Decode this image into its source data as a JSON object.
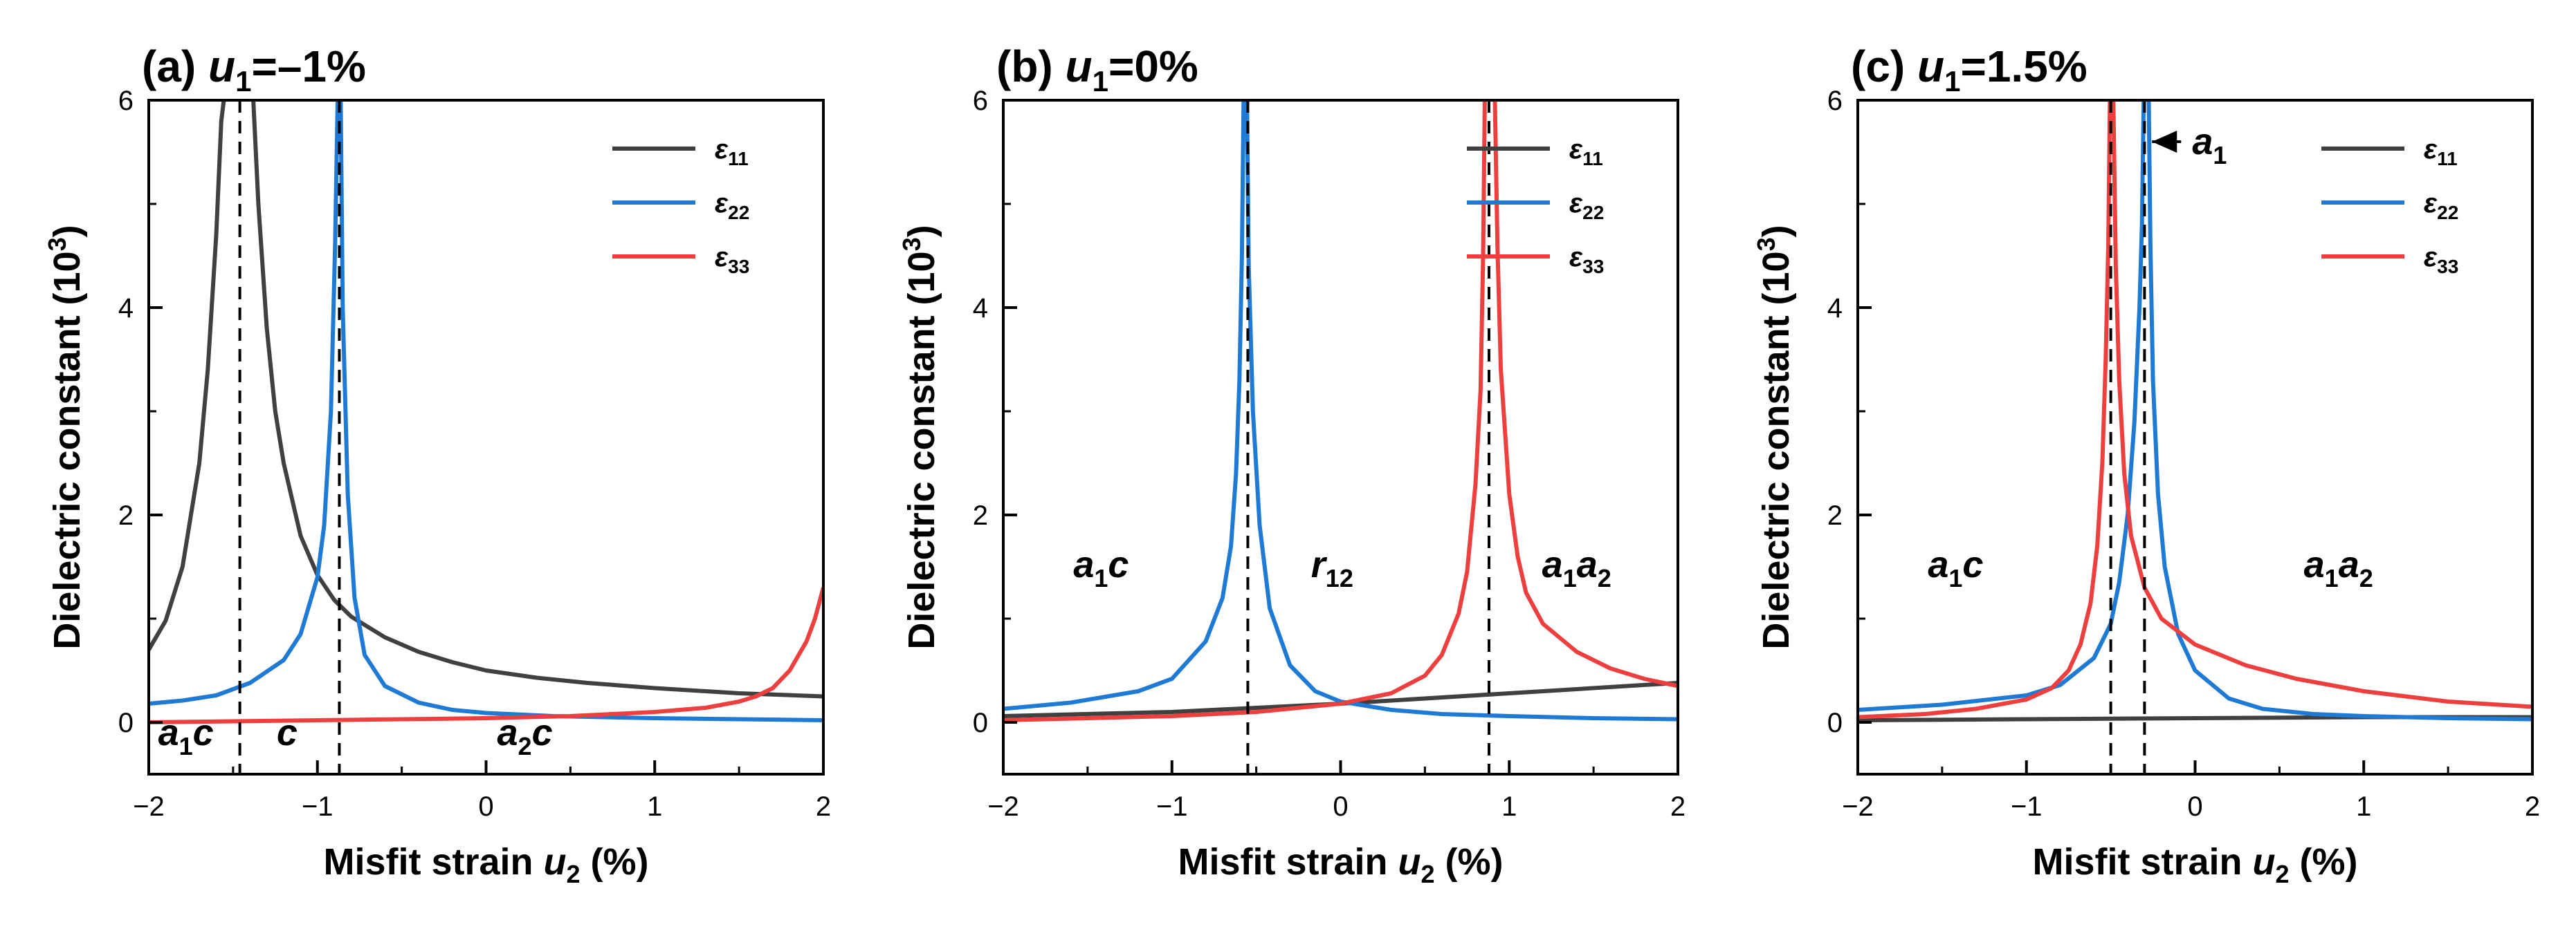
{
  "chart_data": [
    {
      "type": "line",
      "panel": "(a)",
      "title_prefix": "(a) ",
      "title_var": "u",
      "title_sub": "1",
      "title_value": "=–1%",
      "xlabel_text": "Misfit strain ",
      "xlabel_var": "u",
      "xlabel_sub": "2",
      "xlabel_unit": " (%)",
      "ylabel_text": "Dielectric constant (10",
      "ylabel_sup": "3",
      "ylabel_close": ")",
      "xlim": [
        -2,
        2
      ],
      "ylim": [
        -0.5,
        6
      ],
      "xticks": [
        -2,
        -1,
        0,
        1,
        2
      ],
      "xtick_labels": [
        "−2",
        "−1",
        "0",
        "1",
        "2"
      ],
      "yticks": [
        0,
        2,
        4,
        6
      ],
      "ytick_labels": [
        "0",
        "2",
        "4",
        "6"
      ],
      "vlines": [
        -1.46,
        -0.87
      ],
      "legend_position": "top-right",
      "phases": [
        {
          "x": -1.78,
          "y": -0.22,
          "parts": [
            {
              "t": "a",
              "i": true
            },
            {
              "t": "1",
              "sub": true
            },
            {
              "t": "c",
              "i": true
            }
          ]
        },
        {
          "x": -1.18,
          "y": -0.22,
          "parts": [
            {
              "t": "c",
              "i": true
            }
          ]
        },
        {
          "x": 0.23,
          "y": -0.22,
          "parts": [
            {
              "t": "a",
              "i": true
            },
            {
              "t": "2",
              "sub": true
            },
            {
              "t": "c",
              "i": true
            }
          ]
        }
      ],
      "series": [
        {
          "name": "ε",
          "sub": "11",
          "color": "#404040",
          "points": [
            [
              -2.0,
              0.7
            ],
            [
              -1.9,
              0.98
            ],
            [
              -1.8,
              1.5
            ],
            [
              -1.7,
              2.5
            ],
            [
              -1.65,
              3.4
            ],
            [
              -1.6,
              4.7
            ],
            [
              -1.57,
              5.8
            ],
            [
              -1.555,
              6.0
            ],
            null,
            [
              -1.38,
              6.0
            ],
            [
              -1.35,
              5.0
            ],
            [
              -1.3,
              3.8
            ],
            [
              -1.25,
              3.0
            ],
            [
              -1.2,
              2.5
            ],
            [
              -1.1,
              1.8
            ],
            [
              -1.0,
              1.42
            ],
            [
              -0.9,
              1.18
            ],
            [
              -0.8,
              1.02
            ],
            [
              -0.6,
              0.82
            ],
            [
              -0.4,
              0.68
            ],
            [
              -0.2,
              0.58
            ],
            [
              0.0,
              0.5
            ],
            [
              0.3,
              0.43
            ],
            [
              0.6,
              0.38
            ],
            [
              1.0,
              0.33
            ],
            [
              1.5,
              0.28
            ],
            [
              2.0,
              0.25
            ]
          ]
        },
        {
          "name": "ε",
          "sub": "22",
          "color": "#1f7ad6",
          "points": [
            [
              -2.0,
              0.18
            ],
            [
              -1.8,
              0.21
            ],
            [
              -1.6,
              0.26
            ],
            [
              -1.4,
              0.38
            ],
            [
              -1.2,
              0.6
            ],
            [
              -1.1,
              0.85
            ],
            [
              -1.0,
              1.4
            ],
            [
              -0.96,
              1.9
            ],
            [
              -0.92,
              3.0
            ],
            [
              -0.895,
              4.6
            ],
            [
              -0.88,
              6.0
            ],
            null,
            [
              -0.862,
              6.0
            ],
            [
              -0.85,
              4.0
            ],
            [
              -0.82,
              2.2
            ],
            [
              -0.78,
              1.2
            ],
            [
              -0.72,
              0.65
            ],
            [
              -0.6,
              0.35
            ],
            [
              -0.4,
              0.19
            ],
            [
              -0.2,
              0.12
            ],
            [
              0.0,
              0.09
            ],
            [
              0.4,
              0.06
            ],
            [
              1.0,
              0.04
            ],
            [
              2.0,
              0.02
            ]
          ]
        },
        {
          "name": "ε",
          "sub": "33",
          "color": "#ee3f3f",
          "points": [
            [
              -2.0,
              0.0
            ],
            [
              -1.5,
              0.01
            ],
            [
              -1.0,
              0.02
            ],
            [
              -0.5,
              0.03
            ],
            [
              0.0,
              0.04
            ],
            [
              0.5,
              0.06
            ],
            [
              1.0,
              0.1
            ],
            [
              1.3,
              0.14
            ],
            [
              1.5,
              0.2
            ],
            [
              1.6,
              0.25
            ],
            [
              1.7,
              0.33
            ],
            [
              1.8,
              0.5
            ],
            [
              1.9,
              0.78
            ],
            [
              1.95,
              1.0
            ],
            [
              2.0,
              1.3
            ]
          ]
        }
      ]
    },
    {
      "type": "line",
      "panel": "(b)",
      "title_prefix": "(b) ",
      "title_var": "u",
      "title_sub": "1",
      "title_value": "=0%",
      "xlabel_text": "Misfit strain ",
      "xlabel_var": "u",
      "xlabel_sub": "2",
      "xlabel_unit": " (%)",
      "ylabel_text": "Dielectric constant (10",
      "ylabel_sup": "3",
      "ylabel_close": ")",
      "xlim": [
        -2,
        2
      ],
      "ylim": [
        -0.5,
        6
      ],
      "xticks": [
        -2,
        -1,
        0,
        1,
        2
      ],
      "xtick_labels": [
        "−2",
        "−1",
        "0",
        "1",
        "2"
      ],
      "yticks": [
        0,
        2,
        4,
        6
      ],
      "ytick_labels": [
        "0",
        "2",
        "4",
        "6"
      ],
      "vlines": [
        -0.55,
        0.88
      ],
      "legend_position": "top-right",
      "phases": [
        {
          "x": -1.42,
          "y": 1.4,
          "parts": [
            {
              "t": "a",
              "i": true
            },
            {
              "t": "1",
              "sub": true
            },
            {
              "t": "c",
              "i": true
            }
          ]
        },
        {
          "x": -0.05,
          "y": 1.4,
          "parts": [
            {
              "t": "r",
              "i": true
            },
            {
              "t": "12",
              "sub": true
            }
          ]
        },
        {
          "x": 1.4,
          "y": 1.4,
          "parts": [
            {
              "t": "a",
              "i": true
            },
            {
              "t": "1",
              "sub": true
            },
            {
              "t": "a",
              "i": true
            },
            {
              "t": "2",
              "sub": true
            }
          ]
        }
      ],
      "series": [
        {
          "name": "ε",
          "sub": "11",
          "color": "#404040",
          "points": [
            [
              -2.0,
              0.06
            ],
            [
              -1.0,
              0.1
            ],
            [
              0.0,
              0.18
            ],
            [
              1.0,
              0.28
            ],
            [
              2.0,
              0.38
            ]
          ]
        },
        {
          "name": "ε",
          "sub": "22",
          "color": "#1f7ad6",
          "points": [
            [
              -2.0,
              0.13
            ],
            [
              -1.6,
              0.19
            ],
            [
              -1.2,
              0.3
            ],
            [
              -1.0,
              0.42
            ],
            [
              -0.8,
              0.78
            ],
            [
              -0.7,
              1.2
            ],
            [
              -0.65,
              1.7
            ],
            [
              -0.62,
              2.4
            ],
            [
              -0.6,
              3.3
            ],
            [
              -0.585,
              4.5
            ],
            [
              -0.575,
              6.0
            ],
            null,
            [
              -0.555,
              6.0
            ],
            [
              -0.545,
              4.4
            ],
            [
              -0.52,
              3.0
            ],
            [
              -0.48,
              1.9
            ],
            [
              -0.42,
              1.1
            ],
            [
              -0.3,
              0.55
            ],
            [
              -0.15,
              0.3
            ],
            [
              0.0,
              0.2
            ],
            [
              0.3,
              0.12
            ],
            [
              0.6,
              0.08
            ],
            [
              1.0,
              0.06
            ],
            [
              1.5,
              0.04
            ],
            [
              2.0,
              0.03
            ]
          ]
        },
        {
          "name": "ε",
          "sub": "33",
          "color": "#ee3f3f",
          "points": [
            [
              -2.0,
              0.02
            ],
            [
              -1.5,
              0.04
            ],
            [
              -1.0,
              0.06
            ],
            [
              -0.5,
              0.1
            ],
            [
              0.0,
              0.18
            ],
            [
              0.3,
              0.28
            ],
            [
              0.5,
              0.45
            ],
            [
              0.6,
              0.65
            ],
            [
              0.7,
              1.05
            ],
            [
              0.75,
              1.45
            ],
            [
              0.8,
              2.3
            ],
            [
              0.83,
              3.2
            ],
            [
              0.845,
              4.5
            ],
            [
              0.855,
              6.0
            ],
            null,
            [
              0.915,
              6.0
            ],
            [
              0.93,
              4.6
            ],
            [
              0.95,
              3.4
            ],
            [
              1.0,
              2.2
            ],
            [
              1.05,
              1.6
            ],
            [
              1.1,
              1.25
            ],
            [
              1.2,
              0.95
            ],
            [
              1.4,
              0.68
            ],
            [
              1.6,
              0.52
            ],
            [
              1.8,
              0.42
            ],
            [
              2.0,
              0.35
            ]
          ]
        }
      ]
    },
    {
      "type": "line",
      "panel": "(c)",
      "title_prefix": "(c) ",
      "title_var": "u",
      "title_sub": "1",
      "title_value": "=1.5%",
      "xlabel_text": "Misfit strain ",
      "xlabel_var": "u",
      "xlabel_sub": "2",
      "xlabel_unit": " (%)",
      "ylabel_text": "Dielectric constant (10",
      "ylabel_sup": "3",
      "ylabel_close": ")",
      "xlim": [
        -2,
        2
      ],
      "ylim": [
        -0.5,
        6
      ],
      "xticks": [
        -2,
        -1,
        0,
        1,
        2
      ],
      "xtick_labels": [
        "−2",
        "−1",
        "0",
        "1",
        "2"
      ],
      "yticks": [
        0,
        2,
        4,
        6
      ],
      "ytick_labels": [
        "0",
        "2",
        "4",
        "6"
      ],
      "vlines": [
        -0.5,
        -0.3
      ],
      "legend_position": "top-right",
      "annotation": {
        "parts": [
          {
            "t": "a",
            "i": true
          },
          {
            "t": "1",
            "sub": true
          }
        ],
        "arrow_to": [
          -0.28,
          5.6
        ],
        "text_x": -0.05,
        "text_y": 5.6
      },
      "phases": [
        {
          "x": -1.42,
          "y": 1.4,
          "parts": [
            {
              "t": "a",
              "i": true
            },
            {
              "t": "1",
              "sub": true
            },
            {
              "t": "c",
              "i": true
            }
          ]
        },
        {
          "x": 0.85,
          "y": 1.4,
          "parts": [
            {
              "t": "a",
              "i": true
            },
            {
              "t": "1",
              "sub": true
            },
            {
              "t": "a",
              "i": true
            },
            {
              "t": "2",
              "sub": true
            }
          ]
        }
      ],
      "series": [
        {
          "name": "ε",
          "sub": "11",
          "color": "#404040",
          "points": [
            [
              -2.0,
              0.02
            ],
            [
              -1.0,
              0.03
            ],
            [
              0.0,
              0.04
            ],
            [
              1.0,
              0.05
            ],
            [
              2.0,
              0.05
            ]
          ]
        },
        {
          "name": "ε",
          "sub": "22",
          "color": "#1f7ad6",
          "points": [
            [
              -2.0,
              0.12
            ],
            [
              -1.5,
              0.17
            ],
            [
              -1.0,
              0.26
            ],
            [
              -0.8,
              0.36
            ],
            [
              -0.6,
              0.62
            ],
            [
              -0.5,
              0.95
            ],
            [
              -0.45,
              1.35
            ],
            [
              -0.4,
              2.0
            ],
            [
              -0.36,
              2.9
            ],
            [
              -0.33,
              4.0
            ],
            [
              -0.315,
              4.8
            ],
            [
              -0.305,
              6.0
            ],
            null,
            [
              -0.275,
              6.0
            ],
            [
              -0.265,
              4.6
            ],
            [
              -0.25,
              3.3
            ],
            [
              -0.22,
              2.2
            ],
            [
              -0.18,
              1.5
            ],
            [
              -0.1,
              0.85
            ],
            [
              0.0,
              0.5
            ],
            [
              0.2,
              0.23
            ],
            [
              0.4,
              0.13
            ],
            [
              0.7,
              0.08
            ],
            [
              1.0,
              0.06
            ],
            [
              1.5,
              0.04
            ],
            [
              2.0,
              0.03
            ]
          ]
        },
        {
          "name": "ε",
          "sub": "33",
          "color": "#ee3f3f",
          "points": [
            [
              -2.0,
              0.05
            ],
            [
              -1.6,
              0.08
            ],
            [
              -1.3,
              0.13
            ],
            [
              -1.0,
              0.22
            ],
            [
              -0.85,
              0.33
            ],
            [
              -0.75,
              0.5
            ],
            [
              -0.68,
              0.75
            ],
            [
              -0.62,
              1.15
            ],
            [
              -0.58,
              1.7
            ],
            [
              -0.55,
              2.5
            ],
            [
              -0.53,
              3.5
            ],
            [
              -0.515,
              4.6
            ],
            [
              -0.505,
              6.0
            ],
            null,
            [
              -0.485,
              6.0
            ],
            [
              -0.47,
              4.4
            ],
            [
              -0.45,
              3.3
            ],
            [
              -0.42,
              2.4
            ],
            [
              -0.38,
              1.8
            ],
            [
              -0.3,
              1.3
            ],
            [
              -0.2,
              1.0
            ],
            [
              0.0,
              0.75
            ],
            [
              0.3,
              0.55
            ],
            [
              0.6,
              0.42
            ],
            [
              1.0,
              0.3
            ],
            [
              1.5,
              0.2
            ],
            [
              2.0,
              0.15
            ]
          ]
        }
      ]
    }
  ]
}
